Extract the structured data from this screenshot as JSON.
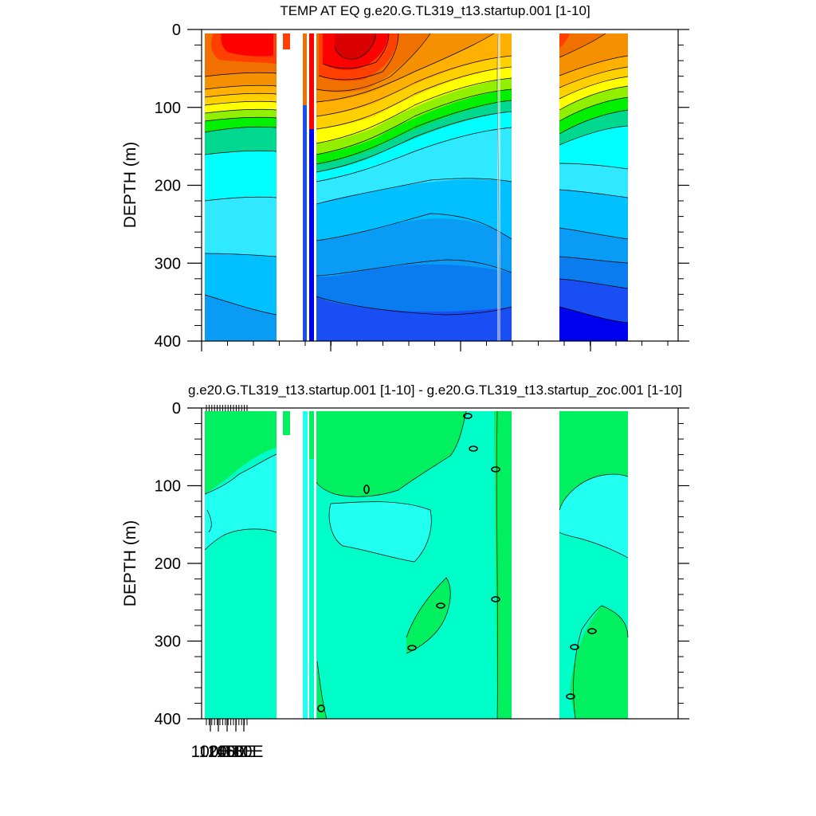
{
  "chart_data": [
    {
      "type": "heatmap",
      "subtype": "filled-contour depth section",
      "title": "TEMP AT EQ g.e20.G.TL319_t13.startup.001 [1-10]",
      "ylabel": "DEPTH (m)",
      "y_ticks": [
        "0",
        "100",
        "200",
        "300",
        "400"
      ],
      "ylim": [
        400,
        0
      ],
      "y_reversed": true,
      "colors": {
        "levels": [
          "#0000f0",
          "#1a4ef5",
          "#0a7cf0",
          "#0a9cf5",
          "#00c0ff",
          "#30e8ff",
          "#00ffff",
          "#00d890",
          "#00f000",
          "#90f000",
          "#ffff00",
          "#ffd000",
          "#ffb000",
          "#f59000",
          "#f07000",
          "#ff4000",
          "#ff0000",
          "#d80000"
        ],
        "mask": "#ffffff"
      }
    },
    {
      "type": "heatmap",
      "subtype": "filled-contour depth section (difference)",
      "title": "g.e20.G.TL319_t13.startup.001 [1-10] - g.e20.G.TL319_t13.startup_zoc.001 [1-10]",
      "ylabel": "DEPTH (m)",
      "y_ticks": [
        "0",
        "100",
        "200",
        "300",
        "400"
      ],
      "ylim": [
        400,
        0
      ],
      "y_reversed": true,
      "x_tick_labels": [
        "100E",
        "120E",
        "140E",
        "160E",
        "180E"
      ],
      "colors": {
        "aqua": "#00ffc8",
        "cyan": "#20fff0",
        "green": "#00f060",
        "mask": "#ffffff"
      }
    }
  ]
}
